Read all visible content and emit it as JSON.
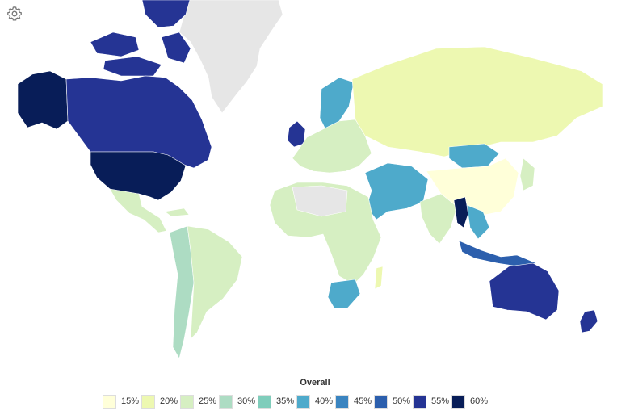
{
  "settings": {
    "icon": "gear-icon"
  },
  "legend": {
    "title": "Overall",
    "items": [
      {
        "label": "15%",
        "color": "#ffffd9"
      },
      {
        "label": "20%",
        "color": "#edf8b1"
      },
      {
        "label": "25%",
        "color": "#d6efc2"
      },
      {
        "label": "30%",
        "color": "#addcc3"
      },
      {
        "label": "35%",
        "color": "#7fcdbb"
      },
      {
        "label": "40%",
        "color": "#4eaacb"
      },
      {
        "label": "45%",
        "color": "#3a84c0"
      },
      {
        "label": "50%",
        "color": "#2c5fad"
      },
      {
        "label": "55%",
        "color": "#253494"
      },
      {
        "label": "60%",
        "color": "#081d58"
      }
    ]
  },
  "no_data_color": "#e6e6e6",
  "regions": [
    {
      "name": "Canada",
      "color": "#253494"
    },
    {
      "name": "Alaska",
      "color": "#081d58"
    },
    {
      "name": "United States",
      "color": "#081d58"
    },
    {
      "name": "Greenland",
      "color": "#e6e6e6"
    },
    {
      "name": "Mexico",
      "color": "#d6efc2"
    },
    {
      "name": "Brazil",
      "color": "#d6efc2"
    },
    {
      "name": "South America West",
      "color": "#addcc3"
    },
    {
      "name": "Russia",
      "color": "#edf8b1"
    },
    {
      "name": "China",
      "color": "#ffffd9"
    },
    {
      "name": "Mongolia",
      "color": "#4eaacb"
    },
    {
      "name": "Europe",
      "color": "#d6efc2"
    },
    {
      "name": "Scandinavia",
      "color": "#4eaacb"
    },
    {
      "name": "United Kingdom",
      "color": "#253494"
    },
    {
      "name": "Africa",
      "color": "#d6efc2"
    },
    {
      "name": "Sahara",
      "color": "#e6e6e6"
    },
    {
      "name": "South Africa",
      "color": "#4eaacb"
    },
    {
      "name": "Middle East",
      "color": "#4eaacb"
    },
    {
      "name": "India",
      "color": "#d6efc2"
    },
    {
      "name": "Myanmar",
      "color": "#081d58"
    },
    {
      "name": "Southeast Asia",
      "color": "#4eaacb"
    },
    {
      "name": "Indonesia",
      "color": "#2c5fad"
    },
    {
      "name": "Australia",
      "color": "#253494"
    },
    {
      "name": "New Zealand",
      "color": "#253494"
    },
    {
      "name": "Madagascar",
      "color": "#edf8b1"
    },
    {
      "name": "Japan",
      "color": "#d6efc2"
    }
  ]
}
